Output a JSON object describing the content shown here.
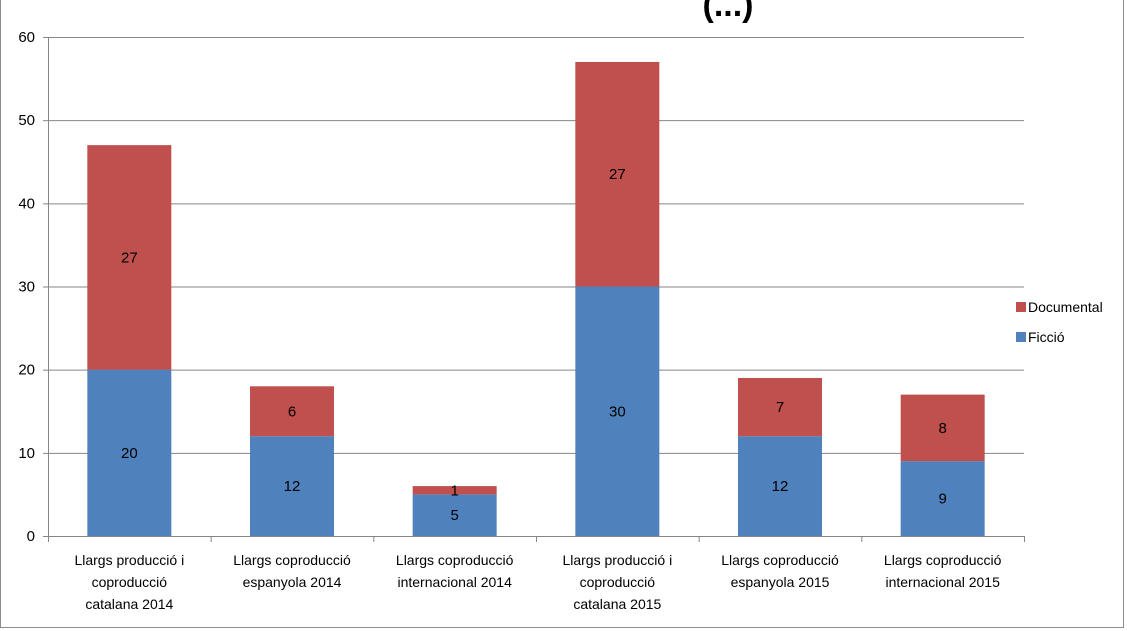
{
  "chart_data": {
    "type": "bar",
    "stacked": true,
    "title": "(...)",
    "categories": [
      [
        "Llargs producció i",
        "coproducció",
        "catalana 2014"
      ],
      [
        "Llargs coproducció",
        "espanyola 2014"
      ],
      [
        "Llargs coproducció",
        "internacional 2014"
      ],
      [
        "Llargs producció i",
        "coproducció",
        "catalana 2015"
      ],
      [
        "Llargs coproducció",
        "espanyola 2015"
      ],
      [
        "Llargs coproducció",
        "internacional 2015"
      ]
    ],
    "series": [
      {
        "name": "Ficció",
        "values": [
          20,
          12,
          5,
          30,
          12,
          9
        ],
        "color": "#4f81bd"
      },
      {
        "name": "Documental",
        "values": [
          27,
          6,
          1,
          27,
          7,
          8
        ],
        "color": "#c0504d"
      }
    ],
    "ylim": [
      0,
      60
    ],
    "yticks": [
      0,
      10,
      20,
      30,
      40,
      50,
      60
    ],
    "grid": true,
    "gridline_color": "#868686",
    "legend": {
      "position": "right",
      "order": [
        "Documental",
        "Ficció"
      ]
    }
  }
}
